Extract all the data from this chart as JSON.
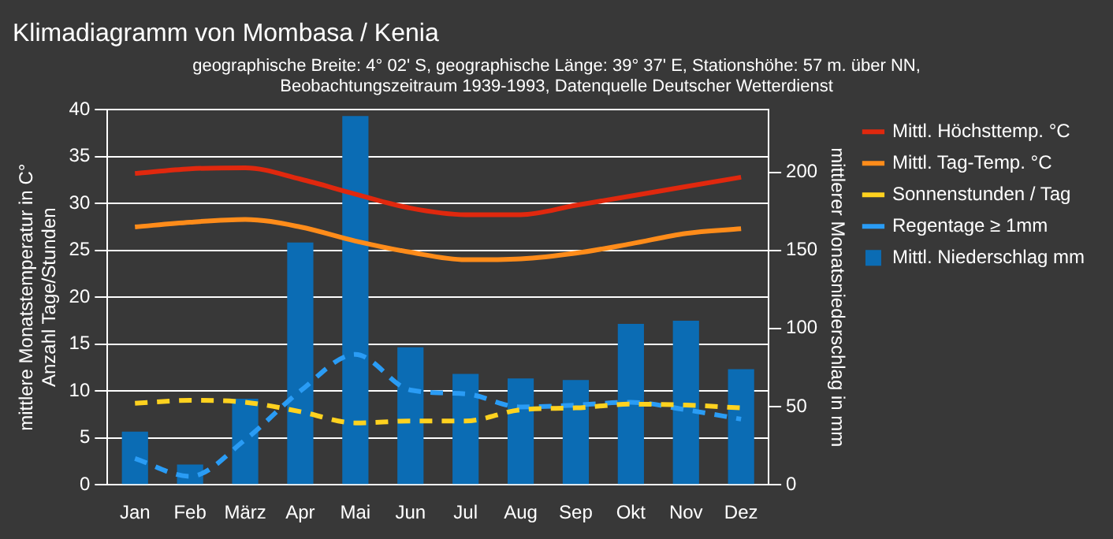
{
  "chart_data": {
    "type": "bar",
    "title": "Klimadiagramm von Mombasa / Kenia",
    "subtitle": "geographische Breite: 4° 02' S, geographische Länge: 39° 37' E, Stationshöhe: 57 m. über NN,\nBeobachtungszeitraum 1939-1993, Datenquelle Deutscher Wetterdienst",
    "ylabel": "mittlere Monatstemperatur in C°\nAnzahl Tage/Stunden",
    "y2label": "mittlerer Monatsniederschlag in mm",
    "categories": [
      "Jan",
      "Feb",
      "März",
      "Apr",
      "Mai",
      "Jun",
      "Jul",
      "Aug",
      "Sep",
      "Okt",
      "Nov",
      "Dez"
    ],
    "series": [
      {
        "name": "Mittl. Niederschlag mm",
        "axis": "y2",
        "color": "#0b6cb4",
        "values": [
          34,
          13,
          55,
          155,
          236,
          88,
          71,
          68,
          67,
          103,
          105,
          74
        ]
      },
      {
        "name": "Mittl. Höchsttemp. °C",
        "type": "line",
        "color": "#e0280e",
        "line_style": "solid",
        "values": [
          33.2,
          33.7,
          33.8,
          32.6,
          31.0,
          29.5,
          28.8,
          28.8,
          29.8,
          30.8,
          31.8,
          32.8
        ]
      },
      {
        "name": "Mittl. Tag-Temp. °C",
        "type": "line",
        "color": "#ff8c1a",
        "line_style": "solid",
        "values": [
          27.5,
          28.0,
          28.3,
          27.5,
          26.0,
          24.8,
          24.0,
          24.1,
          24.7,
          25.7,
          26.8,
          27.3
        ]
      },
      {
        "name": "Sonnenstunden / Tag",
        "type": "line",
        "color": "#ffd21f",
        "line_style": "dashed",
        "values": [
          8.7,
          9.0,
          8.8,
          7.8,
          6.6,
          6.8,
          6.8,
          8.0,
          8.2,
          8.6,
          8.5,
          8.2
        ]
      },
      {
        "name": "Regentage ≥ 1mm",
        "type": "line",
        "color": "#2a9cf5",
        "line_style": "dashed",
        "values": [
          2.8,
          0.9,
          4.8,
          10.0,
          13.9,
          10.1,
          9.7,
          8.3,
          8.5,
          8.8,
          8.0,
          7.0
        ]
      }
    ],
    "ylim": [
      0,
      40
    ],
    "yticks": [
      0,
      5,
      10,
      15,
      20,
      25,
      30,
      35,
      40
    ],
    "y2lim": [
      0,
      240
    ],
    "y2ticks": [
      0,
      50,
      100,
      150,
      200
    ],
    "grid": "y",
    "legend": "right",
    "marker": "none"
  }
}
